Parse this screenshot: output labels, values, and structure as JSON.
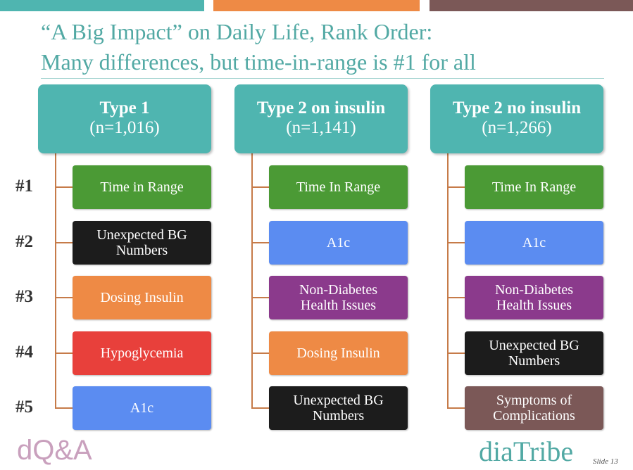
{
  "title": {
    "line1": "“A Big Impact” on Daily Life, Rank Order:",
    "line2": "Many differences, but time-in-range is #1 for all"
  },
  "ranks": [
    "#1",
    "#2",
    "#3",
    "#4",
    "#5"
  ],
  "columns": [
    {
      "header": "Type 1",
      "n": "(n=1,016)",
      "items": [
        {
          "label": "Time in Range",
          "color": "#4b9a35"
        },
        {
          "label": "Unexpected BG Numbers",
          "color": "#1c1c1c"
        },
        {
          "label": "Dosing Insulin",
          "color": "#ee8a45"
        },
        {
          "label": "Hypoglycemia",
          "color": "#e8403b"
        },
        {
          "label": "A1c",
          "color": "#5b8cf1"
        }
      ]
    },
    {
      "header": "Type 2 on insulin",
      "n": "(n=1,141)",
      "items": [
        {
          "label": "Time In Range",
          "color": "#4b9a35"
        },
        {
          "label": "A1c",
          "color": "#5b8cf1"
        },
        {
          "label": "Non-Diabetes Health Issues",
          "color": "#8b3a8c"
        },
        {
          "label": "Dosing Insulin",
          "color": "#ee8a45"
        },
        {
          "label": "Unexpected BG Numbers",
          "color": "#1c1c1c"
        }
      ]
    },
    {
      "header": "Type 2 no insulin",
      "n": "(n=1,266)",
      "items": [
        {
          "label": "Time In Range",
          "color": "#4b9a35"
        },
        {
          "label": "A1c",
          "color": "#5b8cf1"
        },
        {
          "label": "Non-Diabetes Health Issues",
          "color": "#8b3a8c"
        },
        {
          "label": "Unexpected BG Numbers",
          "color": "#1c1c1c"
        },
        {
          "label": "Symptoms of Complications",
          "color": "#7b5857"
        }
      ]
    }
  ],
  "footer": {
    "left_logo": "dQ&A",
    "right_logo": "diaTribe",
    "slide": "Slide 13"
  }
}
